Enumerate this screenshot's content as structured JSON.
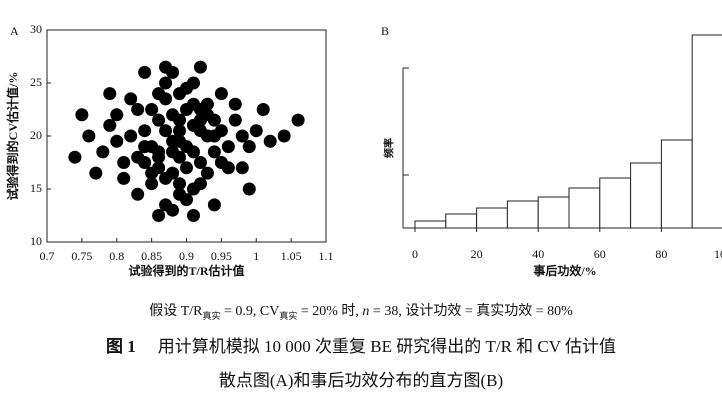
{
  "chart_data": [
    {
      "type": "scatter",
      "label": "A",
      "xlabel": "试验得到的T/R估计值",
      "ylabel": "试验得到的CV估计值/%",
      "color": "#000000",
      "x": [
        0.89,
        0.87,
        0.91,
        0.85,
        0.93,
        0.88,
        0.9,
        0.86,
        0.92,
        0.84,
        0.94,
        0.89,
        0.87,
        0.91,
        0.83,
        0.95,
        0.88,
        0.9,
        0.86,
        0.92,
        0.82,
        0.96,
        0.89,
        0.87,
        0.91,
        0.85,
        0.93,
        0.88,
        0.9,
        0.8,
        0.98,
        0.89,
        0.86,
        0.92,
        0.84,
        0.94,
        0.87,
        0.91,
        0.83,
        0.95,
        0.88,
        0.9,
        0.81,
        0.97,
        0.85,
        0.93,
        0.89,
        0.86,
        0.92,
        0.79,
        0.99,
        0.78,
        1.0,
        0.88,
        0.9,
        0.87,
        0.91,
        0.84,
        0.94,
        0.82,
        0.96,
        0.76,
        1.02,
        0.86,
        0.92,
        0.89,
        0.85,
        0.93,
        0.8,
        0.98,
        0.77,
        1.01,
        0.83,
        0.95,
        0.88,
        0.74,
        1.04,
        0.87,
        0.91,
        0.81,
        0.97,
        0.75,
        1.06,
        0.89,
        0.79,
        0.99,
        0.84,
        0.94,
        0.86,
        0.92
      ],
      "y": [
        19.5,
        20.5,
        18.5,
        19.0,
        20.0,
        22.0,
        17.0,
        21.5,
        17.5,
        20.5,
        18.5,
        15.5,
        23.5,
        21.0,
        18.0,
        20.5,
        16.5,
        22.5,
        18.0,
        21.5,
        20.0,
        19.0,
        24.0,
        16.0,
        23.0,
        22.5,
        16.5,
        19.5,
        19.0,
        19.5,
        20.0,
        14.5,
        17.0,
        22.5,
        17.5,
        21.5,
        25.0,
        15.0,
        22.5,
        17.5,
        18.5,
        24.5,
        17.5,
        21.5,
        15.5,
        23.0,
        20.5,
        24.0,
        15.5,
        21.0,
        19.0,
        18.5,
        20.5,
        26.0,
        14.0,
        13.5,
        25.0,
        19.0,
        20.0,
        23.5,
        17.0,
        20.0,
        19.5,
        18.5,
        20.5,
        21.5,
        16.5,
        22.0,
        22.0,
        17.0,
        16.5,
        22.5,
        14.5,
        24.0,
        13.0,
        18.0,
        20.0,
        26.5,
        12.5,
        16.0,
        23.0,
        22.0,
        21.5,
        18.0,
        24.0,
        15.0,
        26.0,
        13.5,
        12.5,
        26.5
      ],
      "xlim": [
        0.7,
        1.1
      ],
      "ylim": [
        10,
        30
      ],
      "xticks": [
        0.7,
        0.75,
        0.8,
        0.85,
        0.9,
        0.95,
        1,
        1.05,
        1.1
      ],
      "yticks": [
        10,
        15,
        20,
        25,
        30
      ]
    },
    {
      "type": "histogram",
      "label": "B",
      "xlabel": "事后功效/%",
      "ylabel": "频率",
      "color": "#ffffff",
      "bins": [
        0,
        10,
        20,
        30,
        40,
        50,
        60,
        70,
        80,
        90,
        100
      ],
      "values": [
        0.7,
        1.4,
        2.0,
        2.7,
        3.1,
        4.0,
        5.0,
        6.5,
        8.8,
        19.3
      ],
      "xlim": [
        0,
        100
      ],
      "ylim": [
        0,
        20
      ],
      "xticks": [
        0,
        20,
        40,
        60,
        80,
        100
      ]
    }
  ],
  "caption": {
    "note": [
      "假设 T/R",
      "真实",
      " = 0.9, CV",
      "真实",
      " = 20% 时, ",
      "n",
      " = 38, 设计功效 = 真实功效 = 80%"
    ],
    "figure": "图 1",
    "lines": [
      "用计算机模拟 10 000 次重复 BE 研究得出的 T/R 和 CV 估计值",
      "散点图(A)和事后功效分布的直方图(B)"
    ]
  }
}
